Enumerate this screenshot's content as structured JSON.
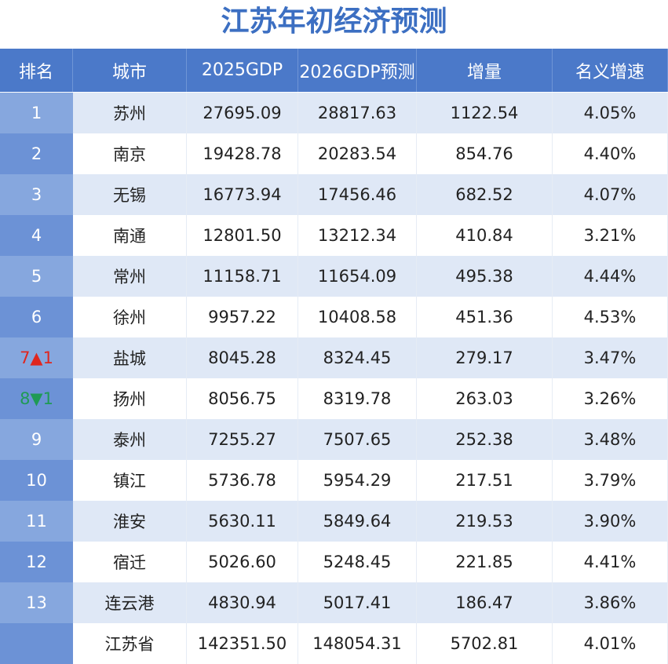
{
  "title": "江苏年初经济预测",
  "table": {
    "header": [
      "排名",
      "城市",
      "2025GDP",
      "2026GDP预测",
      "增量",
      "名义增速"
    ],
    "rows": [
      {
        "rank": "1",
        "cells": [
          "苏州",
          "27695.09",
          "28817.63",
          "1122.54",
          "4.05%"
        ]
      },
      {
        "rank": "2",
        "cells": [
          "南京",
          "19428.78",
          "20283.54",
          "854.76",
          "4.40%"
        ]
      },
      {
        "rank": "3",
        "cells": [
          "无锡",
          "16773.94",
          "17456.46",
          "682.52",
          "4.07%"
        ]
      },
      {
        "rank": "4",
        "cells": [
          "南通",
          "12801.50",
          "13212.34",
          "410.84",
          "3.21%"
        ]
      },
      {
        "rank": "5",
        "cells": [
          "常州",
          "11158.71",
          "11654.09",
          "495.38",
          "4.44%"
        ]
      },
      {
        "rank": "6",
        "cells": [
          "徐州",
          "9957.22",
          "10408.58",
          "451.36",
          "4.53%"
        ]
      },
      {
        "rank": "7▲1",
        "rank_color": "#e0261f",
        "cells": [
          "盐城",
          "8045.28",
          "8324.45",
          "279.17",
          "3.47%"
        ]
      },
      {
        "rank": "8▼1",
        "rank_color": "#1f9a55",
        "cells": [
          "扬州",
          "8056.75",
          "8319.78",
          "263.03",
          "3.26%"
        ]
      },
      {
        "rank": "9",
        "cells": [
          "泰州",
          "7255.27",
          "7507.65",
          "252.38",
          "3.48%"
        ]
      },
      {
        "rank": "10",
        "cells": [
          "镇江",
          "5736.78",
          "5954.29",
          "217.51",
          "3.79%"
        ]
      },
      {
        "rank": "11",
        "cells": [
          "淮安",
          "5630.11",
          "5849.64",
          "219.53",
          "3.90%"
        ]
      },
      {
        "rank": "12",
        "cells": [
          "宿迁",
          "5026.60",
          "5248.45",
          "221.85",
          "4.41%"
        ]
      },
      {
        "rank": "13",
        "cells": [
          "连云港",
          "4830.94",
          "5017.41",
          "186.47",
          "3.86%"
        ]
      },
      {
        "cells": [
          "江苏省",
          "142351.50",
          "148054.31",
          "5702.81",
          "4.01%"
        ]
      }
    ]
  }
}
